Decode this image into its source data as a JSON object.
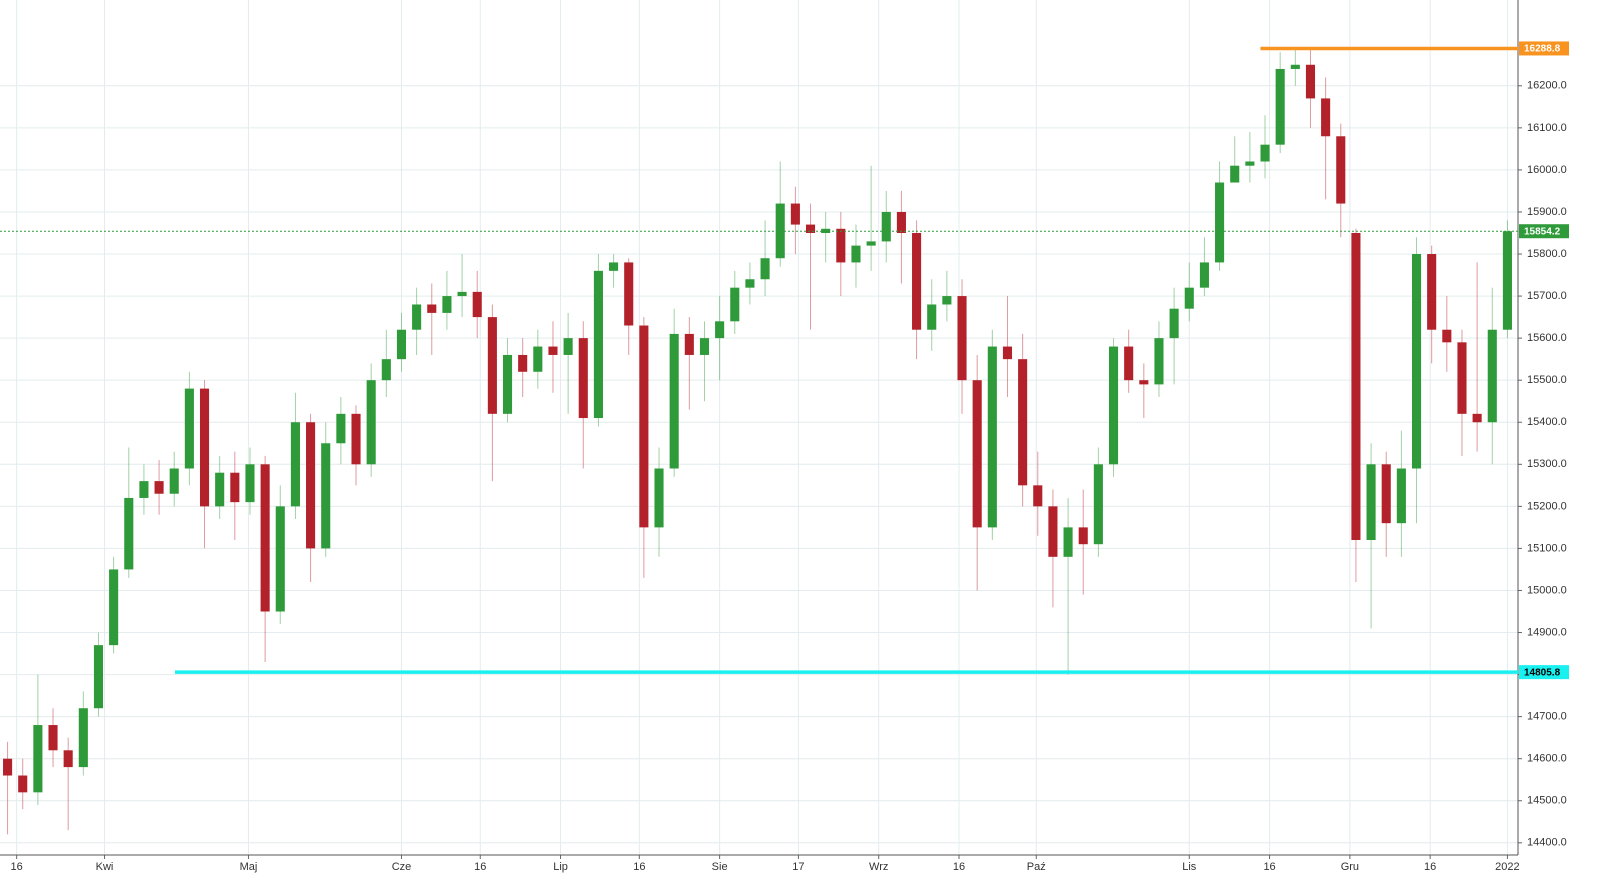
{
  "chart_data": {
    "type": "candlestick",
    "open": [
      14600,
      14560,
      14520,
      14680,
      14620,
      14580,
      14720,
      14870,
      15050,
      15220,
      15260,
      15230,
      15290,
      15480,
      15200,
      15280,
      15210,
      15300,
      14950,
      15200,
      15400,
      15100,
      15350,
      15420,
      15300,
      15500,
      15550,
      15620,
      15680,
      15660,
      15700,
      15710,
      15650,
      15420,
      15560,
      15520,
      15580,
      15560,
      15600,
      15410,
      15760,
      15780,
      15630,
      15150,
      15290,
      15610,
      15560,
      15600,
      15640,
      15720,
      15740,
      15790,
      15920,
      15870,
      15850,
      15860,
      15780,
      15820,
      15830,
      15900,
      15850,
      15620,
      15680,
      15700,
      15500,
      15150,
      15580,
      15550,
      15250,
      15200,
      15080,
      15150,
      15110,
      15300,
      15580,
      15500,
      15490,
      15600,
      15670,
      15720,
      15780,
      15970,
      16010,
      16020,
      16060,
      16240,
      16250,
      16170,
      16080,
      15850,
      15120,
      15300,
      15160,
      15290,
      15800,
      15620,
      15590,
      15420,
      15400,
      15620
    ],
    "high": [
      14640,
      14600,
      14800,
      14720,
      14650,
      14760,
      14900,
      15080,
      15340,
      15300,
      15310,
      15330,
      15520,
      15500,
      15320,
      15330,
      15340,
      15320,
      15250,
      15470,
      15420,
      15400,
      15460,
      15440,
      15540,
      15620,
      15660,
      15720,
      15730,
      15760,
      15800,
      15760,
      15680,
      15600,
      15600,
      15620,
      15640,
      15660,
      15640,
      15800,
      15800,
      15790,
      15650,
      15340,
      15670,
      15650,
      15640,
      15700,
      15760,
      15780,
      15880,
      16020,
      15960,
      15920,
      15900,
      15900,
      15870,
      16010,
      15950,
      15950,
      15880,
      15740,
      15760,
      15740,
      15560,
      15620,
      15700,
      15610,
      15330,
      15240,
      15220,
      15240,
      15340,
      15600,
      15620,
      15540,
      15640,
      15720,
      15780,
      15840,
      16020,
      16080,
      16090,
      16130,
      16280,
      16289,
      16290,
      16220,
      16110,
      15860,
      15350,
      15330,
      15380,
      15840,
      15820,
      15700,
      15620,
      15780,
      15720,
      15880
    ],
    "low": [
      14420,
      14480,
      14490,
      14580,
      14430,
      14560,
      14700,
      14850,
      15030,
      15180,
      15180,
      15200,
      15250,
      15100,
      15170,
      15120,
      15180,
      14830,
      14920,
      15170,
      15020,
      15080,
      15300,
      15250,
      15270,
      15460,
      15520,
      15560,
      15560,
      15620,
      15650,
      15600,
      15260,
      15400,
      15460,
      15480,
      15470,
      15420,
      15290,
      15390,
      15720,
      15560,
      15030,
      15080,
      15270,
      15430,
      15450,
      15500,
      15610,
      15680,
      15700,
      15770,
      15800,
      15620,
      15780,
      15700,
      15720,
      15760,
      15780,
      15730,
      15550,
      15570,
      15640,
      15420,
      15000,
      15120,
      15460,
      15200,
      15130,
      14960,
      14800,
      14990,
      15080,
      15270,
      15470,
      15410,
      15460,
      15490,
      15640,
      15700,
      15760,
      15980,
      15970,
      15980,
      16040,
      16200,
      16100,
      15930,
      15840,
      15020,
      14910,
      15080,
      15080,
      15160,
      15540,
      15520,
      15320,
      15330,
      15300,
      15600
    ],
    "close": [
      14560,
      14520,
      14680,
      14620,
      14580,
      14720,
      14870,
      15050,
      15220,
      15260,
      15230,
      15290,
      15480,
      15200,
      15280,
      15210,
      15300,
      14950,
      15200,
      15400,
      15100,
      15350,
      15420,
      15300,
      15500,
      15550,
      15620,
      15680,
      15660,
      15700,
      15710,
      15650,
      15420,
      15560,
      15520,
      15580,
      15560,
      15600,
      15410,
      15760,
      15780,
      15630,
      15150,
      15290,
      15610,
      15560,
      15600,
      15640,
      15720,
      15740,
      15790,
      15920,
      15870,
      15850,
      15860,
      15780,
      15820,
      15830,
      15900,
      15850,
      15620,
      15680,
      15700,
      15500,
      15150,
      15580,
      15550,
      15250,
      15200,
      15080,
      15150,
      15110,
      15300,
      15580,
      15500,
      15490,
      15600,
      15670,
      15720,
      15780,
      15970,
      16010,
      16020,
      16060,
      16240,
      16250,
      16170,
      16080,
      15920,
      15120,
      15300,
      15160,
      15290,
      15800,
      15620,
      15590,
      15420,
      15400,
      15620,
      15854.2
    ],
    "up_color": "#2e9a3a",
    "down_color": "#b3222b",
    "xlim": [
      0,
      100
    ],
    "xticks": [
      {
        "value": 1.1,
        "label": "16"
      },
      {
        "value": 6.9,
        "label": "Kwi"
      },
      {
        "value": 16.4,
        "label": "Maj"
      },
      {
        "value": 26.5,
        "label": "Cze"
      },
      {
        "value": 31.7,
        "label": "16"
      },
      {
        "value": 37.0,
        "label": "Lip"
      },
      {
        "value": 42.2,
        "label": "16"
      },
      {
        "value": 47.5,
        "label": "Sie"
      },
      {
        "value": 52.7,
        "label": "17"
      },
      {
        "value": 58.0,
        "label": "Wrz"
      },
      {
        "value": 63.3,
        "label": "16"
      },
      {
        "value": 68.4,
        "label": "Paź"
      },
      {
        "value": 78.5,
        "label": "Lis"
      },
      {
        "value": 83.8,
        "label": "16"
      },
      {
        "value": 89.1,
        "label": "Gru"
      },
      {
        "value": 94.4,
        "label": "16"
      },
      {
        "value": 99.5,
        "label": "2022"
      }
    ],
    "ylim": [
      14371,
      16404
    ],
    "yticks": [
      {
        "value": 14400,
        "label": "14400.0"
      },
      {
        "value": 14500,
        "label": "14500.0"
      },
      {
        "value": 14600,
        "label": "14600.0"
      },
      {
        "value": 14700,
        "label": "14700.0"
      },
      {
        "value": 14800,
        "label": "14800.0"
      },
      {
        "value": 14900,
        "label": "14900.0"
      },
      {
        "value": 15000,
        "label": "15000.0"
      },
      {
        "value": 15100,
        "label": "15100.0"
      },
      {
        "value": 15200,
        "label": "15200.0"
      },
      {
        "value": 15300,
        "label": "15300.0"
      },
      {
        "value": 15400,
        "label": "15400.0"
      },
      {
        "value": 15500,
        "label": "15500.0"
      },
      {
        "value": 15600,
        "label": "15600.0"
      },
      {
        "value": 15700,
        "label": "15700.0"
      },
      {
        "value": 15800,
        "label": "15800.0"
      },
      {
        "value": 15900,
        "label": "15900.0"
      },
      {
        "value": 16000,
        "label": "16000.0"
      },
      {
        "value": 16100,
        "label": "16100.0"
      },
      {
        "value": 16200,
        "label": "16200.0"
      }
    ],
    "grid": true,
    "levels": [
      {
        "value": 16288.8,
        "color": "#f7931e",
        "style": "solid"
      },
      {
        "value": 14805.8,
        "color": "#19f0f0",
        "style": "solid"
      },
      {
        "value": 15854.2,
        "color": "#2e9a3a",
        "style": "dotted"
      }
    ]
  }
}
